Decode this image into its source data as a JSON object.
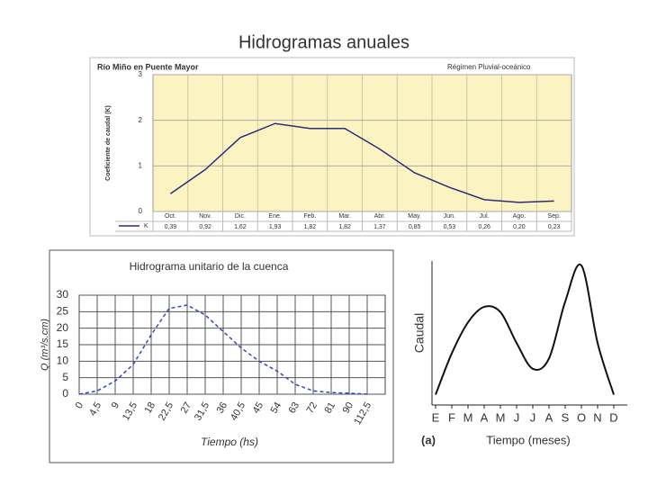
{
  "title": "Hidrogramas anuales",
  "chart_data": [
    {
      "type": "line",
      "title": "Río Miño en Puente Mayor",
      "subtitle": "Régimen Pluvial-oceánico",
      "y_label": "Coeficiente de caudal (K)",
      "categories": [
        "Oct.",
        "Nov.",
        "Dic.",
        "Ene.",
        "Feb.",
        "Mar.",
        "Abr.",
        "May.",
        "Jun.",
        "Jul.",
        "Ago.",
        "Sep."
      ],
      "series": [
        {
          "name": "K",
          "color": "#2b2f7a",
          "values": [
            0.39,
            0.92,
            1.62,
            1.93,
            1.82,
            1.82,
            1.37,
            0.85,
            0.53,
            0.26,
            0.2,
            0.23
          ],
          "value_labels": [
            "0,39",
            "0,92",
            "1,62",
            "1,93",
            "1,82",
            "1,82",
            "1,37",
            "0,85",
            "0,53",
            "0,26",
            "0,20",
            "0,23"
          ]
        }
      ],
      "ylim": [
        0,
        3
      ],
      "yticks": [
        0,
        1,
        2,
        3
      ],
      "grid": true,
      "background": "#fbf3c2"
    },
    {
      "type": "line",
      "title": "Hidrograma unitario de la cuenca",
      "x_label": "Tiempo (hs)",
      "y_label": "Q (m³/s.cm)",
      "categories": [
        "0",
        "4,5",
        "9",
        "13,5",
        "18",
        "22,5",
        "27",
        "31,5",
        "36",
        "40,5",
        "45",
        "54",
        "63",
        "72",
        "81",
        "90",
        "112,5"
      ],
      "values": [
        0,
        1,
        4,
        9,
        18,
        26,
        27,
        24,
        19,
        14,
        10,
        7,
        3,
        1,
        0.5,
        0.3,
        0
      ],
      "color": "#3346c8",
      "line_style": "dashed",
      "ylim": [
        0,
        30
      ],
      "yticks": [
        0,
        5,
        10,
        15,
        20,
        25,
        30
      ],
      "grid": true
    },
    {
      "type": "line",
      "annotation": "(a)",
      "x_label": "Tiempo (meses)",
      "y_label": "Caudal",
      "categories": [
        "E",
        "F",
        "M",
        "A",
        "M",
        "J",
        "J",
        "A",
        "S",
        "O",
        "N",
        "D"
      ],
      "values": [
        10,
        50,
        80,
        95,
        90,
        60,
        35,
        45,
        100,
        135,
        60,
        10
      ],
      "color": "#111111",
      "smooth": true
    }
  ]
}
